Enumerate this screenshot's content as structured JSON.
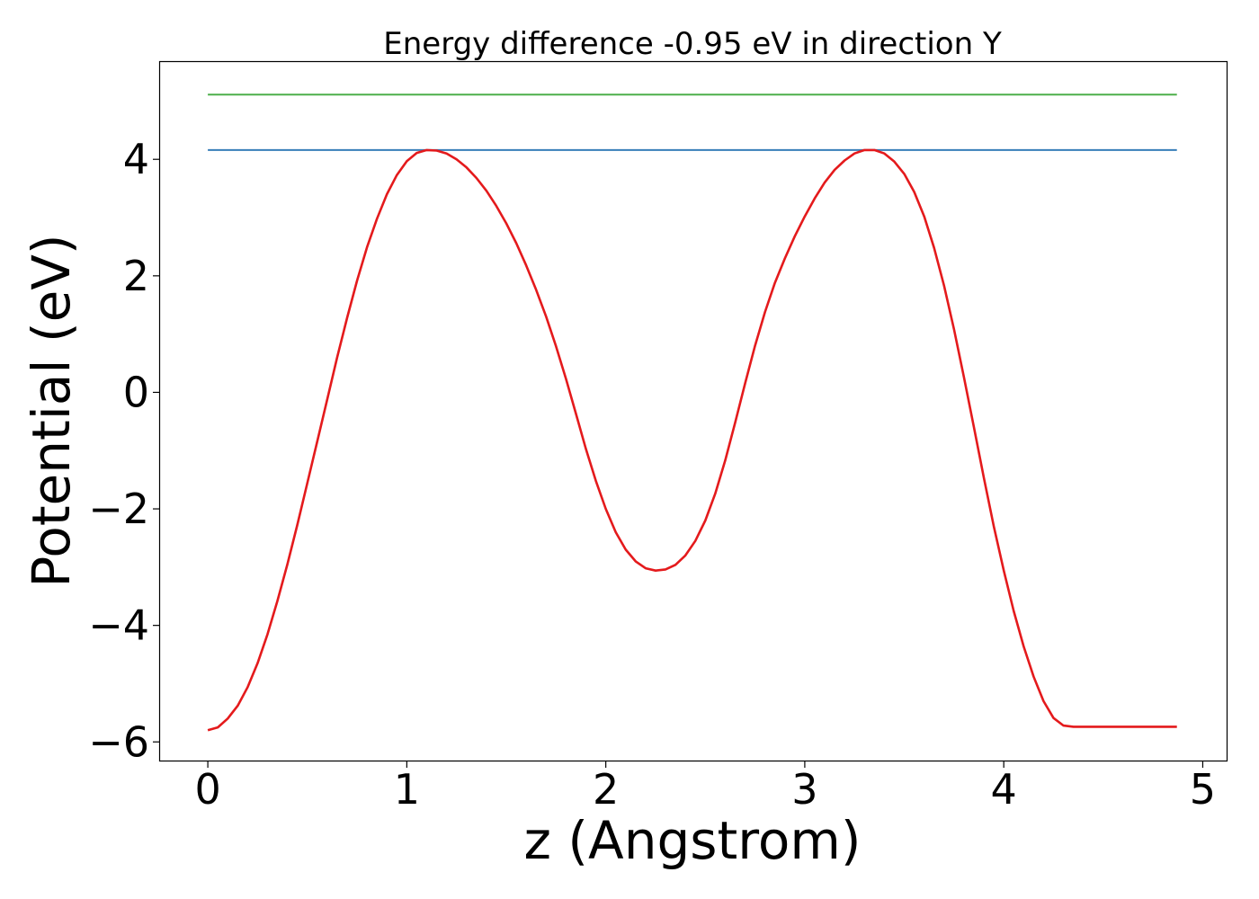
{
  "chart_data": {
    "type": "line",
    "title": "Energy difference -0.95 eV in direction Y",
    "xlabel": "z (Angstrom)",
    "ylabel": "Potential (eV)",
    "xlim": [
      -0.24,
      5.12
    ],
    "ylim": [
      -6.32,
      5.67
    ],
    "xticks": [
      0,
      1,
      2,
      3,
      4,
      5
    ],
    "yticks": [
      -6,
      -4,
      -2,
      0,
      2,
      4
    ],
    "xtick_labels": [
      "0",
      "1",
      "2",
      "3",
      "4",
      "5"
    ],
    "ytick_labels": [
      "−6",
      "−4",
      "−2",
      "0",
      "2",
      "4"
    ],
    "grid": false,
    "series": [
      {
        "color": "#e41a1c",
        "x": [
          0.0,
          0.05,
          0.1,
          0.15,
          0.2,
          0.25,
          0.3,
          0.35,
          0.4,
          0.45,
          0.5,
          0.55,
          0.6,
          0.65,
          0.7,
          0.75,
          0.8,
          0.85,
          0.9,
          0.95,
          1.0,
          1.05,
          1.1,
          1.15,
          1.2,
          1.25,
          1.3,
          1.35,
          1.4,
          1.45,
          1.5,
          1.55,
          1.6,
          1.65,
          1.7,
          1.75,
          1.8,
          1.85,
          1.9,
          1.95,
          2.0,
          2.05,
          2.1,
          2.15,
          2.2,
          2.25,
          2.3,
          2.35,
          2.4,
          2.45,
          2.5,
          2.55,
          2.6,
          2.65,
          2.7,
          2.75,
          2.8,
          2.85,
          2.9,
          2.95,
          3.0,
          3.05,
          3.1,
          3.15,
          3.2,
          3.25,
          3.3,
          3.35,
          3.4,
          3.45,
          3.5,
          3.55,
          3.6,
          3.65,
          3.7,
          3.75,
          3.8,
          3.85,
          3.9,
          3.95,
          4.0,
          4.05,
          4.1,
          4.15,
          4.2,
          4.25,
          4.3,
          4.35,
          4.4,
          4.45,
          4.5,
          4.55,
          4.6,
          4.65,
          4.7,
          4.75,
          4.8,
          4.87
        ],
        "y": [
          -5.8,
          -5.75,
          -5.6,
          -5.38,
          -5.06,
          -4.65,
          -4.15,
          -3.58,
          -2.95,
          -2.27,
          -1.56,
          -0.84,
          -0.12,
          0.6,
          1.28,
          1.92,
          2.49,
          2.98,
          3.4,
          3.73,
          3.97,
          4.11,
          4.16,
          4.15,
          4.1,
          4.0,
          3.86,
          3.68,
          3.46,
          3.2,
          2.9,
          2.56,
          2.18,
          1.76,
          1.3,
          0.79,
          0.23,
          -0.37,
          -0.97,
          -1.52,
          -2.0,
          -2.4,
          -2.7,
          -2.9,
          -3.02,
          -3.06,
          -3.04,
          -2.96,
          -2.8,
          -2.55,
          -2.2,
          -1.74,
          -1.17,
          -0.52,
          0.15,
          0.8,
          1.38,
          1.88,
          2.3,
          2.68,
          3.02,
          3.33,
          3.6,
          3.82,
          3.98,
          4.1,
          4.16,
          4.16,
          4.1,
          3.96,
          3.75,
          3.44,
          3.02,
          2.48,
          1.83,
          1.08,
          0.26,
          -0.6,
          -1.47,
          -2.3,
          -3.06,
          -3.75,
          -4.36,
          -4.88,
          -5.3,
          -5.59,
          -5.72,
          -5.74,
          -5.74,
          -5.74,
          -5.74,
          -5.74,
          -5.74,
          -5.74,
          -5.74,
          -5.74,
          -5.74,
          -5.74
        ]
      },
      {
        "color": "#377eb8",
        "x": [
          0.0,
          4.87
        ],
        "y": [
          4.16,
          4.16
        ]
      },
      {
        "color": "#4daf4a",
        "x": [
          0.0,
          4.87
        ],
        "y": [
          5.11,
          5.11
        ]
      }
    ]
  }
}
